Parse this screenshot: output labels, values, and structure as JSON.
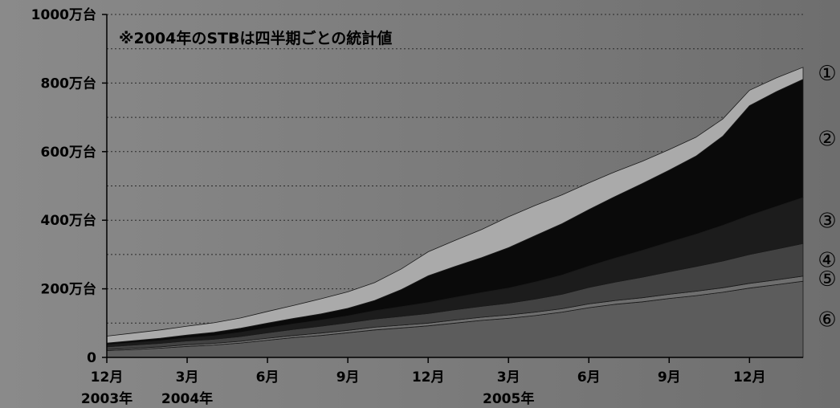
{
  "chart_data": {
    "type": "area",
    "stacked": true,
    "note": "※2004年のSTBは四半期ごとの統計値",
    "ylim": [
      0,
      1000
    ],
    "y_ticks": [
      {
        "value": 0,
        "label": "0"
      },
      {
        "value": 200,
        "label": "200万台"
      },
      {
        "value": 400,
        "label": "400万台"
      },
      {
        "value": 600,
        "label": "600万台"
      },
      {
        "value": 800,
        "label": "800万台"
      },
      {
        "value": 1000,
        "label": "1000万台"
      }
    ],
    "minor_gridlines": [
      100,
      300,
      500,
      700,
      900
    ],
    "x": [
      "2003-12",
      "2004-01",
      "2004-02",
      "2004-03",
      "2004-04",
      "2004-05",
      "2004-06",
      "2004-07",
      "2004-08",
      "2004-09",
      "2004-10",
      "2004-11",
      "2004-12",
      "2005-01",
      "2005-02",
      "2005-03",
      "2005-04",
      "2005-05",
      "2005-06",
      "2005-07",
      "2005-08",
      "2005-09",
      "2005-10",
      "2005-11",
      "2005-12",
      "2006-01",
      "2006-02"
    ],
    "x_ticks": [
      {
        "x": "2003-12",
        "label": "12月"
      },
      {
        "x": "2004-03",
        "label": "3月"
      },
      {
        "x": "2004-06",
        "label": "6月"
      },
      {
        "x": "2004-09",
        "label": "9月"
      },
      {
        "x": "2004-12",
        "label": "12月"
      },
      {
        "x": "2005-03",
        "label": "3月"
      },
      {
        "x": "2005-06",
        "label": "6月"
      },
      {
        "x": "2005-09",
        "label": "9月"
      },
      {
        "x": "2005-12",
        "label": "12月"
      }
    ],
    "year_labels": [
      {
        "x": "2003-12",
        "label": "2003年"
      },
      {
        "x": "2004-03",
        "label": "2004年"
      },
      {
        "x": "2005-03",
        "label": "2005年"
      }
    ],
    "series": [
      {
        "name": "⑥",
        "color": "#5c5c5c",
        "values": [
          20,
          23,
          27,
          32,
          36,
          42,
          50,
          58,
          64,
          72,
          80,
          86,
          92,
          100,
          108,
          114,
          122,
          132,
          145,
          155,
          162,
          172,
          180,
          190,
          202,
          212,
          222
        ]
      },
      {
        "name": "⑤",
        "color": "#6e6e6e",
        "values": [
          3,
          4,
          4,
          5,
          5,
          5,
          6,
          6,
          7,
          7,
          8,
          8,
          8,
          9,
          9,
          10,
          10,
          10,
          11,
          11,
          12,
          12,
          13,
          13,
          14,
          14,
          15
        ]
      },
      {
        "name": "④",
        "color": "#424242",
        "values": [
          8,
          9,
          10,
          11,
          12,
          14,
          16,
          18,
          20,
          22,
          24,
          26,
          28,
          30,
          32,
          34,
          38,
          42,
          48,
          54,
          60,
          66,
          72,
          78,
          84,
          90,
          95
        ]
      },
      {
        "name": "③",
        "color": "#1c1c1c",
        "values": [
          6,
          7,
          8,
          9,
          10,
          12,
          14,
          16,
          18,
          20,
          24,
          28,
          32,
          36,
          40,
          44,
          50,
          56,
          62,
          70,
          78,
          86,
          94,
          104,
          114,
          124,
          134
        ]
      },
      {
        "name": "②",
        "color": "#0a0a0a",
        "values": [
          5,
          6,
          7,
          8,
          10,
          12,
          14,
          16,
          18,
          22,
          30,
          50,
          78,
          90,
          102,
          118,
          135,
          150,
          165,
          180,
          195,
          210,
          228,
          260,
          320,
          335,
          345
        ]
      },
      {
        "name": "①",
        "color": "#aaaaaa",
        "values": [
          20,
          22,
          24,
          26,
          28,
          30,
          34,
          38,
          44,
          48,
          52,
          60,
          70,
          76,
          82,
          90,
          88,
          84,
          78,
          72,
          65,
          60,
          55,
          50,
          45,
          40,
          35
        ]
      }
    ]
  }
}
